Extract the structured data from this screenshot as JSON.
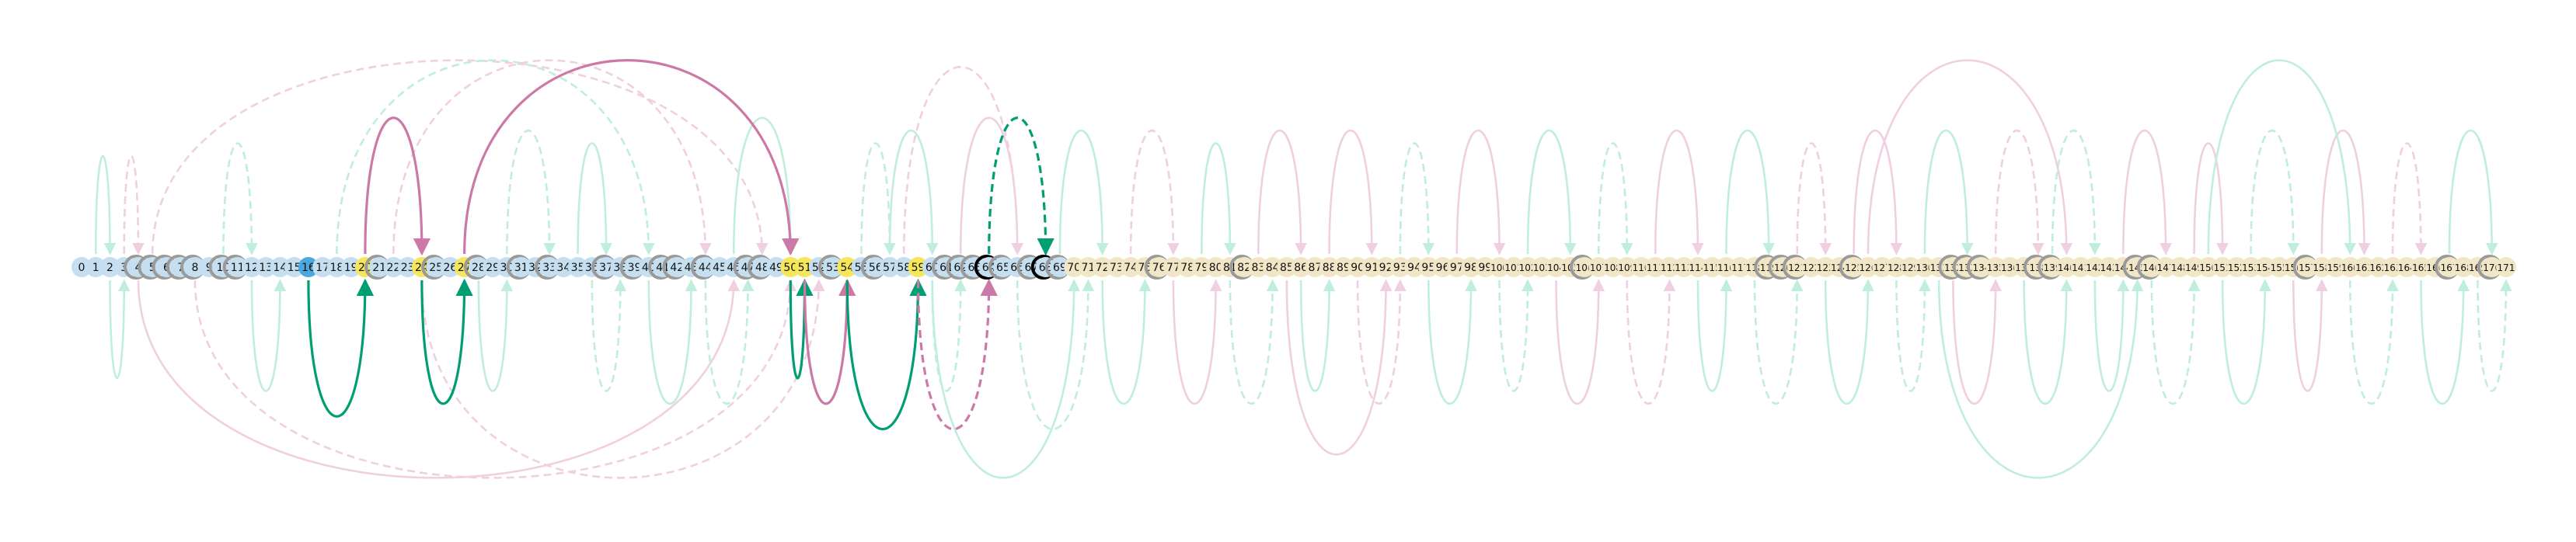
{
  "diagram": {
    "node_count": 172,
    "labels_source": "index",
    "node_palette": {
      "default": "#c5dff0",
      "blue": "#4aa8dc",
      "yellow": "#f5e65a",
      "cream": "#f1e6c6",
      "outline": "#9a9a9a",
      "outline_dark": "#000000"
    },
    "special_nodes": {
      "16": "blue",
      "20": "yellow",
      "24": "yellow",
      "27": "yellow",
      "50": "yellow",
      "51": "yellow",
      "54": "yellow",
      "59": "yellow"
    },
    "ring_nodes": [
      4,
      5,
      6,
      7,
      8,
      10,
      11,
      21,
      25,
      28,
      31,
      33,
      37,
      39,
      41,
      42,
      44,
      47,
      48,
      53,
      56,
      61,
      62,
      63,
      64,
      65,
      67,
      68,
      69,
      76,
      82,
      106,
      119,
      120,
      121,
      125,
      132,
      133,
      134,
      138,
      139,
      145,
      146,
      157,
      167,
      170
    ],
    "dark_ring_nodes": [
      64,
      68
    ],
    "cream_from": 70,
    "edge_colors": {
      "green": "#009e73",
      "pink": "#cc79a7",
      "green_faint": "#bfeedd",
      "pink_faint": "#f0cfe0"
    },
    "highlight_edges": [
      {
        "from": 20,
        "to": 24,
        "color": "pink",
        "side": "up",
        "dashed": false
      },
      {
        "from": 27,
        "to": 50,
        "color": "pink",
        "side": "up",
        "dashed": false
      },
      {
        "from": 64,
        "to": 68,
        "color": "green",
        "side": "up",
        "dashed": true
      },
      {
        "from": 16,
        "to": 20,
        "color": "green",
        "side": "down",
        "dashed": false
      },
      {
        "from": 24,
        "to": 27,
        "color": "green",
        "side": "down",
        "dashed": false
      },
      {
        "from": 50,
        "to": 51,
        "color": "green",
        "side": "down",
        "dashed": false
      },
      {
        "from": 51,
        "to": 54,
        "color": "pink",
        "side": "down",
        "dashed": false
      },
      {
        "from": 54,
        "to": 59,
        "color": "green",
        "side": "down",
        "dashed": false
      },
      {
        "from": 59,
        "to": 64,
        "color": "pink",
        "side": "down",
        "dashed": true
      }
    ],
    "faint_edges": [
      {
        "from": 1,
        "to": 2,
        "color": "green_faint",
        "side": "up",
        "dashed": false
      },
      {
        "from": 3,
        "to": 4,
        "color": "pink_faint",
        "side": "up",
        "dashed": true
      },
      {
        "from": 2,
        "to": 3,
        "color": "green_faint",
        "side": "down",
        "dashed": false
      },
      {
        "from": 5,
        "to": 48,
        "color": "pink_faint",
        "side": "up",
        "dashed": true
      },
      {
        "from": 4,
        "to": 46,
        "color": "pink_faint",
        "side": "down",
        "dashed": false
      },
      {
        "from": 8,
        "to": 50,
        "color": "pink_faint",
        "side": "down",
        "dashed": true
      },
      {
        "from": 10,
        "to": 12,
        "color": "green_faint",
        "side": "up",
        "dashed": true
      },
      {
        "from": 12,
        "to": 14,
        "color": "green_faint",
        "side": "down",
        "dashed": false
      },
      {
        "from": 18,
        "to": 40,
        "color": "green_faint",
        "side": "up",
        "dashed": true
      },
      {
        "from": 22,
        "to": 44,
        "color": "pink_faint",
        "side": "up",
        "dashed": true
      },
      {
        "from": 24,
        "to": 52,
        "color": "pink_faint",
        "side": "down",
        "dashed": true
      },
      {
        "from": 28,
        "to": 30,
        "color": "green_faint",
        "side": "down",
        "dashed": false
      },
      {
        "from": 30,
        "to": 33,
        "color": "green_faint",
        "side": "up",
        "dashed": true
      },
      {
        "from": 35,
        "to": 37,
        "color": "green_faint",
        "side": "up",
        "dashed": false
      },
      {
        "from": 36,
        "to": 38,
        "color": "green_faint",
        "side": "down",
        "dashed": true
      },
      {
        "from": 40,
        "to": 43,
        "color": "green_faint",
        "side": "down",
        "dashed": false
      },
      {
        "from": 44,
        "to": 47,
        "color": "green_faint",
        "side": "down",
        "dashed": true
      },
      {
        "from": 46,
        "to": 50,
        "color": "green_faint",
        "side": "up",
        "dashed": false
      },
      {
        "from": 55,
        "to": 57,
        "color": "green_faint",
        "side": "up",
        "dashed": true
      },
      {
        "from": 57,
        "to": 60,
        "color": "green_faint",
        "side": "up",
        "dashed": false
      },
      {
        "from": 60,
        "to": 62,
        "color": "green_faint",
        "side": "down",
        "dashed": true
      },
      {
        "from": 62,
        "to": 66,
        "color": "pink_faint",
        "side": "up",
        "dashed": false
      },
      {
        "from": 66,
        "to": 71,
        "color": "green_faint",
        "side": "down",
        "dashed": true
      },
      {
        "from": 69,
        "to": 72,
        "color": "green_faint",
        "side": "up",
        "dashed": false
      },
      {
        "from": 72,
        "to": 75,
        "color": "green_faint",
        "side": "down",
        "dashed": false
      },
      {
        "from": 74,
        "to": 77,
        "color": "pink_faint",
        "side": "up",
        "dashed": true
      },
      {
        "from": 77,
        "to": 80,
        "color": "pink_faint",
        "side": "down",
        "dashed": false
      },
      {
        "from": 79,
        "to": 81,
        "color": "green_faint",
        "side": "up",
        "dashed": false
      },
      {
        "from": 81,
        "to": 84,
        "color": "green_faint",
        "side": "down",
        "dashed": true
      },
      {
        "from": 83,
        "to": 86,
        "color": "pink_faint",
        "side": "up",
        "dashed": false
      },
      {
        "from": 86,
        "to": 88,
        "color": "green_faint",
        "side": "down",
        "dashed": false
      },
      {
        "from": 88,
        "to": 91,
        "color": "pink_faint",
        "side": "up",
        "dashed": false
      },
      {
        "from": 90,
        "to": 93,
        "color": "pink_faint",
        "side": "down",
        "dashed": true
      },
      {
        "from": 93,
        "to": 95,
        "color": "green_faint",
        "side": "up",
        "dashed": true
      },
      {
        "from": 95,
        "to": 98,
        "color": "green_faint",
        "side": "down",
        "dashed": false
      },
      {
        "from": 97,
        "to": 100,
        "color": "pink_faint",
        "side": "up",
        "dashed": false
      },
      {
        "from": 100,
        "to": 102,
        "color": "green_faint",
        "side": "down",
        "dashed": true
      },
      {
        "from": 102,
        "to": 105,
        "color": "green_faint",
        "side": "up",
        "dashed": false
      },
      {
        "from": 104,
        "to": 107,
        "color": "pink_faint",
        "side": "down",
        "dashed": false
      },
      {
        "from": 107,
        "to": 109,
        "color": "green_faint",
        "side": "up",
        "dashed": true
      },
      {
        "from": 109,
        "to": 112,
        "color": "pink_faint",
        "side": "down",
        "dashed": true
      },
      {
        "from": 111,
        "to": 114,
        "color": "pink_faint",
        "side": "up",
        "dashed": false
      },
      {
        "from": 114,
        "to": 116,
        "color": "green_faint",
        "side": "down",
        "dashed": false
      },
      {
        "from": 116,
        "to": 119,
        "color": "green_faint",
        "side": "up",
        "dashed": false
      },
      {
        "from": 118,
        "to": 121,
        "color": "green_faint",
        "side": "down",
        "dashed": true
      },
      {
        "from": 121,
        "to": 123,
        "color": "pink_faint",
        "side": "up",
        "dashed": true
      },
      {
        "from": 123,
        "to": 126,
        "color": "green_faint",
        "side": "down",
        "dashed": false
      },
      {
        "from": 125,
        "to": 128,
        "color": "pink_faint",
        "side": "up",
        "dashed": false
      },
      {
        "from": 128,
        "to": 130,
        "color": "green_faint",
        "side": "down",
        "dashed": true
      },
      {
        "from": 130,
        "to": 133,
        "color": "green_faint",
        "side": "up",
        "dashed": false
      },
      {
        "from": 132,
        "to": 135,
        "color": "pink_faint",
        "side": "down",
        "dashed": false
      },
      {
        "from": 135,
        "to": 138,
        "color": "pink_faint",
        "side": "up",
        "dashed": true
      },
      {
        "from": 137,
        "to": 140,
        "color": "green_faint",
        "side": "down",
        "dashed": false
      },
      {
        "from": 139,
        "to": 142,
        "color": "green_faint",
        "side": "up",
        "dashed": true
      },
      {
        "from": 142,
        "to": 144,
        "color": "green_faint",
        "side": "down",
        "dashed": false
      },
      {
        "from": 144,
        "to": 147,
        "color": "pink_faint",
        "side": "up",
        "dashed": false
      },
      {
        "from": 146,
        "to": 149,
        "color": "green_faint",
        "side": "down",
        "dashed": true
      },
      {
        "from": 149,
        "to": 151,
        "color": "pink_faint",
        "side": "up",
        "dashed": false
      },
      {
        "from": 151,
        "to": 154,
        "color": "green_faint",
        "side": "down",
        "dashed": false
      },
      {
        "from": 153,
        "to": 156,
        "color": "green_faint",
        "side": "up",
        "dashed": true
      },
      {
        "from": 156,
        "to": 158,
        "color": "pink_faint",
        "side": "down",
        "dashed": false
      },
      {
        "from": 158,
        "to": 161,
        "color": "pink_faint",
        "side": "up",
        "dashed": false
      },
      {
        "from": 160,
        "to": 163,
        "color": "green_faint",
        "side": "down",
        "dashed": true
      },
      {
        "from": 163,
        "to": 165,
        "color": "pink_faint",
        "side": "up",
        "dashed": true
      },
      {
        "from": 165,
        "to": 168,
        "color": "green_faint",
        "side": "down",
        "dashed": false
      },
      {
        "from": 167,
        "to": 170,
        "color": "green_faint",
        "side": "up",
        "dashed": false
      },
      {
        "from": 169,
        "to": 171,
        "color": "green_faint",
        "side": "down",
        "dashed": true
      },
      {
        "from": 126,
        "to": 140,
        "color": "pink_faint",
        "side": "up",
        "dashed": false
      },
      {
        "from": 131,
        "to": 145,
        "color": "green_faint",
        "side": "down",
        "dashed": false
      },
      {
        "from": 150,
        "to": 160,
        "color": "green_faint",
        "side": "up",
        "dashed": false
      },
      {
        "from": 85,
        "to": 92,
        "color": "pink_faint",
        "side": "down",
        "dashed": false
      },
      {
        "from": 60,
        "to": 70,
        "color": "green_faint",
        "side": "down",
        "dashed": false
      },
      {
        "from": 58,
        "to": 66,
        "color": "pink_faint",
        "side": "up",
        "dashed": true
      }
    ]
  }
}
